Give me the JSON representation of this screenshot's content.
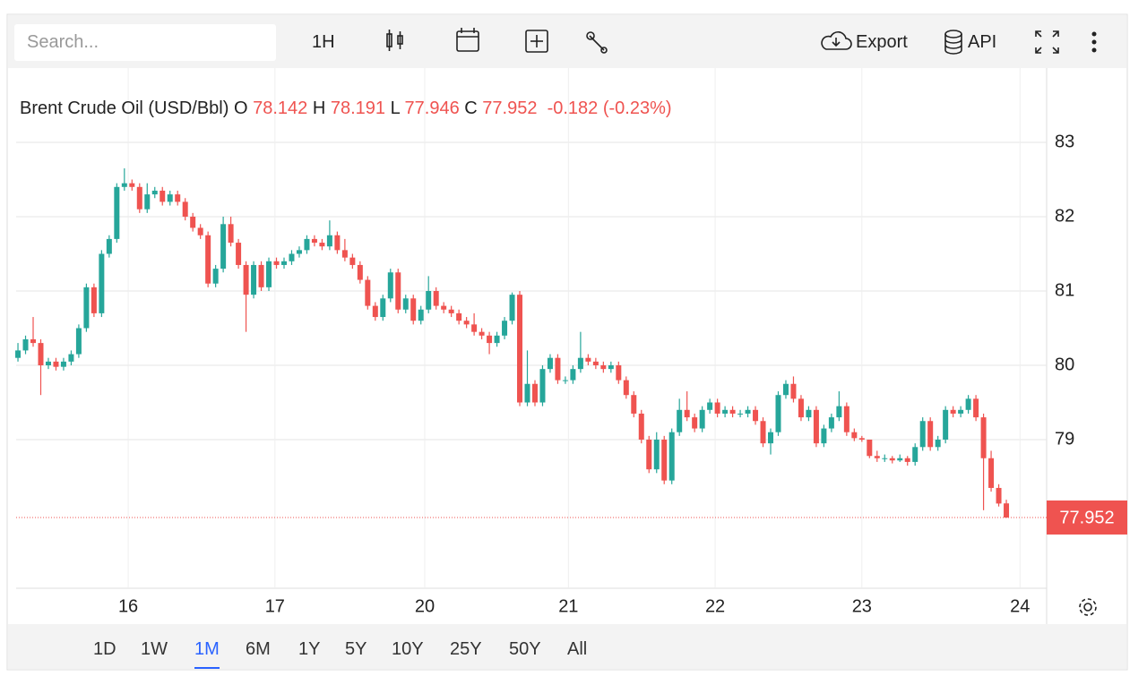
{
  "toolbar": {
    "search_placeholder": "Search...",
    "interval": "1H",
    "export": "Export",
    "api": "API"
  },
  "range_bar": {
    "options": [
      "1D",
      "1W",
      "1M",
      "6M",
      "1Y",
      "5Y",
      "10Y",
      "25Y",
      "50Y",
      "All"
    ],
    "selected": "1M"
  },
  "chart_data": {
    "type": "candlestick",
    "title": "Brent Crude Oil (USD/Bbl)",
    "ohlc_labels": [
      "O",
      "H",
      "L",
      "C"
    ],
    "change": -0.182,
    "change_pct": -0.23,
    "change_pct_label": "(-0.23%)",
    "up_color": "#26a69a",
    "down_color": "#ef5350",
    "grid": true,
    "ylim": [
      77,
      84
    ],
    "yticks": [
      79,
      80,
      81,
      82,
      83
    ],
    "xlim": [
      -0.24,
      135.3
    ],
    "xticks": [
      {
        "value": 14.5,
        "label": "16"
      },
      {
        "value": 33.8,
        "label": "17"
      },
      {
        "value": 53.5,
        "label": "20"
      },
      {
        "value": 72.4,
        "label": "21"
      },
      {
        "value": 91.7,
        "label": "22"
      },
      {
        "value": 111.0,
        "label": "23"
      },
      {
        "value": 131.8,
        "label": "24"
      }
    ],
    "ohlc": [
      [
        80.1,
        80.3,
        80.05,
        80.2
      ],
      [
        80.2,
        80.4,
        80.15,
        80.35
      ],
      [
        80.35,
        80.65,
        80.25,
        80.3
      ],
      [
        80.3,
        80.35,
        79.6,
        80.0
      ],
      [
        80.0,
        80.1,
        79.95,
        80.05
      ],
      [
        80.05,
        80.1,
        79.93,
        79.98
      ],
      [
        79.98,
        80.1,
        79.93,
        80.05
      ],
      [
        80.05,
        80.2,
        80.0,
        80.15
      ],
      [
        80.15,
        80.55,
        80.1,
        80.5
      ],
      [
        80.5,
        81.1,
        80.45,
        81.05
      ],
      [
        81.05,
        81.1,
        80.65,
        80.7
      ],
      [
        80.7,
        81.55,
        80.65,
        81.5
      ],
      [
        81.5,
        81.75,
        81.45,
        81.7
      ],
      [
        81.7,
        82.45,
        81.65,
        82.4
      ],
      [
        82.4,
        82.65,
        82.35,
        82.45
      ],
      [
        82.45,
        82.5,
        82.35,
        82.4
      ],
      [
        82.4,
        82.45,
        82.05,
        82.1
      ],
      [
        82.1,
        82.45,
        82.05,
        82.3
      ],
      [
        82.3,
        82.4,
        82.25,
        82.35
      ],
      [
        82.35,
        82.4,
        82.15,
        82.2
      ],
      [
        82.2,
        82.35,
        82.15,
        82.3
      ],
      [
        82.3,
        82.35,
        82.15,
        82.2
      ],
      [
        82.2,
        82.25,
        81.95,
        82.0
      ],
      [
        82.0,
        82.05,
        81.8,
        81.85
      ],
      [
        81.85,
        81.9,
        81.7,
        81.75
      ],
      [
        81.75,
        81.8,
        81.05,
        81.1
      ],
      [
        81.1,
        81.35,
        81.05,
        81.3
      ],
      [
        81.3,
        82.0,
        81.25,
        81.9
      ],
      [
        81.9,
        82.0,
        81.6,
        81.65
      ],
      [
        81.65,
        81.7,
        81.3,
        81.35
      ],
      [
        81.35,
        81.4,
        80.45,
        80.95
      ],
      [
        80.95,
        81.4,
        80.9,
        81.35
      ],
      [
        81.35,
        81.4,
        81.0,
        81.05
      ],
      [
        81.05,
        81.45,
        81.0,
        81.4
      ],
      [
        81.4,
        81.45,
        81.3,
        81.35
      ],
      [
        81.35,
        81.45,
        81.3,
        81.4
      ],
      [
        81.4,
        81.55,
        81.35,
        81.5
      ],
      [
        81.5,
        81.6,
        81.45,
        81.55
      ],
      [
        81.55,
        81.75,
        81.5,
        81.7
      ],
      [
        81.7,
        81.75,
        81.6,
        81.65
      ],
      [
        81.65,
        81.7,
        81.55,
        81.6
      ],
      [
        81.6,
        81.95,
        81.55,
        81.75
      ],
      [
        81.75,
        81.8,
        81.5,
        81.55
      ],
      [
        81.55,
        81.7,
        81.4,
        81.45
      ],
      [
        81.45,
        81.5,
        81.3,
        81.35
      ],
      [
        81.35,
        81.4,
        81.1,
        81.15
      ],
      [
        81.15,
        81.2,
        80.75,
        80.8
      ],
      [
        80.8,
        80.85,
        80.6,
        80.65
      ],
      [
        80.65,
        80.95,
        80.6,
        80.9
      ],
      [
        80.9,
        81.3,
        80.85,
        81.25
      ],
      [
        81.25,
        81.3,
        80.7,
        80.75
      ],
      [
        80.75,
        80.95,
        80.7,
        80.9
      ],
      [
        80.9,
        80.95,
        80.55,
        80.6
      ],
      [
        80.6,
        80.8,
        80.55,
        80.75
      ],
      [
        80.75,
        81.2,
        80.7,
        81.0
      ],
      [
        81.0,
        81.05,
        80.75,
        80.8
      ],
      [
        80.8,
        80.85,
        80.7,
        80.75
      ],
      [
        80.75,
        80.8,
        80.65,
        80.7
      ],
      [
        80.7,
        80.75,
        80.55,
        80.6
      ],
      [
        80.6,
        80.65,
        80.5,
        80.55
      ],
      [
        80.55,
        80.7,
        80.4,
        80.45
      ],
      [
        80.45,
        80.5,
        80.35,
        80.4
      ],
      [
        80.4,
        80.45,
        80.15,
        80.3
      ],
      [
        80.3,
        80.45,
        80.25,
        80.4
      ],
      [
        80.4,
        80.65,
        80.35,
        80.6
      ],
      [
        80.6,
        80.98,
        80.55,
        80.95
      ],
      [
        80.95,
        81.0,
        79.45,
        79.5
      ],
      [
        79.5,
        80.2,
        79.45,
        79.75
      ],
      [
        79.75,
        79.8,
        79.45,
        79.5
      ],
      [
        79.5,
        80.0,
        79.45,
        79.95
      ],
      [
        79.95,
        80.15,
        79.9,
        80.1
      ],
      [
        80.1,
        80.15,
        79.75,
        79.8
      ],
      [
        79.8,
        79.85,
        79.75,
        79.8
      ],
      [
        79.8,
        80.0,
        79.75,
        79.95
      ],
      [
        79.95,
        80.45,
        79.9,
        80.1
      ],
      [
        80.1,
        80.15,
        80.0,
        80.05
      ],
      [
        80.05,
        80.1,
        79.95,
        80.0
      ],
      [
        80.0,
        80.05,
        79.9,
        79.95
      ],
      [
        79.95,
        80.05,
        79.9,
        80.0
      ],
      [
        80.0,
        80.05,
        79.75,
        79.8
      ],
      [
        79.8,
        79.85,
        79.55,
        79.6
      ],
      [
        79.6,
        79.65,
        79.3,
        79.35
      ],
      [
        79.35,
        79.4,
        78.95,
        79.0
      ],
      [
        79.0,
        79.05,
        78.55,
        78.6
      ],
      [
        78.6,
        79.1,
        78.55,
        79.0
      ],
      [
        79.0,
        79.05,
        78.4,
        78.45
      ],
      [
        78.45,
        79.15,
        78.4,
        79.1
      ],
      [
        79.1,
        79.55,
        79.05,
        79.4
      ],
      [
        79.4,
        79.65,
        79.25,
        79.3
      ],
      [
        79.3,
        79.35,
        79.1,
        79.15
      ],
      [
        79.15,
        79.45,
        79.1,
        79.4
      ],
      [
        79.4,
        79.55,
        79.35,
        79.5
      ],
      [
        79.5,
        79.55,
        79.3,
        79.35
      ],
      [
        79.35,
        79.45,
        79.3,
        79.4
      ],
      [
        79.4,
        79.45,
        79.3,
        79.35
      ],
      [
        79.35,
        79.4,
        79.3,
        79.35
      ],
      [
        79.35,
        79.45,
        79.3,
        79.4
      ],
      [
        79.4,
        79.45,
        79.2,
        79.25
      ],
      [
        79.25,
        79.3,
        78.9,
        78.95
      ],
      [
        78.95,
        79.15,
        78.8,
        79.1
      ],
      [
        79.1,
        79.65,
        79.05,
        79.6
      ],
      [
        79.6,
        79.8,
        79.55,
        79.75
      ],
      [
        79.75,
        79.85,
        79.5,
        79.55
      ],
      [
        79.55,
        79.6,
        79.25,
        79.3
      ],
      [
        79.3,
        79.45,
        79.25,
        79.4
      ],
      [
        79.4,
        79.45,
        78.9,
        78.95
      ],
      [
        78.95,
        79.2,
        78.9,
        79.15
      ],
      [
        79.15,
        79.35,
        79.1,
        79.3
      ],
      [
        79.3,
        79.65,
        79.25,
        79.45
      ],
      [
        79.45,
        79.5,
        79.05,
        79.1
      ],
      [
        79.1,
        79.15,
        78.98,
        79.02
      ],
      [
        79.02,
        79.05,
        78.97,
        79.0
      ],
      [
        79.0,
        79.0,
        78.75,
        78.78
      ],
      [
        78.78,
        78.85,
        78.7,
        78.75
      ],
      [
        78.75,
        78.8,
        78.7,
        78.75
      ],
      [
        78.75,
        78.78,
        78.68,
        78.72
      ],
      [
        78.72,
        78.8,
        78.7,
        78.75
      ],
      [
        78.75,
        78.78,
        78.65,
        78.7
      ],
      [
        78.7,
        78.95,
        78.65,
        78.9
      ],
      [
        78.9,
        79.3,
        78.85,
        79.25
      ],
      [
        79.25,
        79.3,
        78.85,
        78.9
      ],
      [
        78.9,
        79.05,
        78.85,
        79.0
      ],
      [
        79.0,
        79.45,
        78.95,
        79.4
      ],
      [
        79.4,
        79.45,
        79.3,
        79.35
      ],
      [
        79.35,
        79.45,
        79.3,
        79.4
      ],
      [
        79.4,
        79.6,
        79.35,
        79.55
      ],
      [
        79.55,
        79.6,
        79.25,
        79.3
      ],
      [
        79.3,
        79.35,
        78.05,
        78.75
      ],
      [
        78.75,
        78.85,
        78.3,
        78.35
      ],
      [
        78.35,
        78.4,
        78.1,
        78.14
      ],
      [
        78.142,
        78.191,
        77.946,
        77.952
      ]
    ]
  }
}
